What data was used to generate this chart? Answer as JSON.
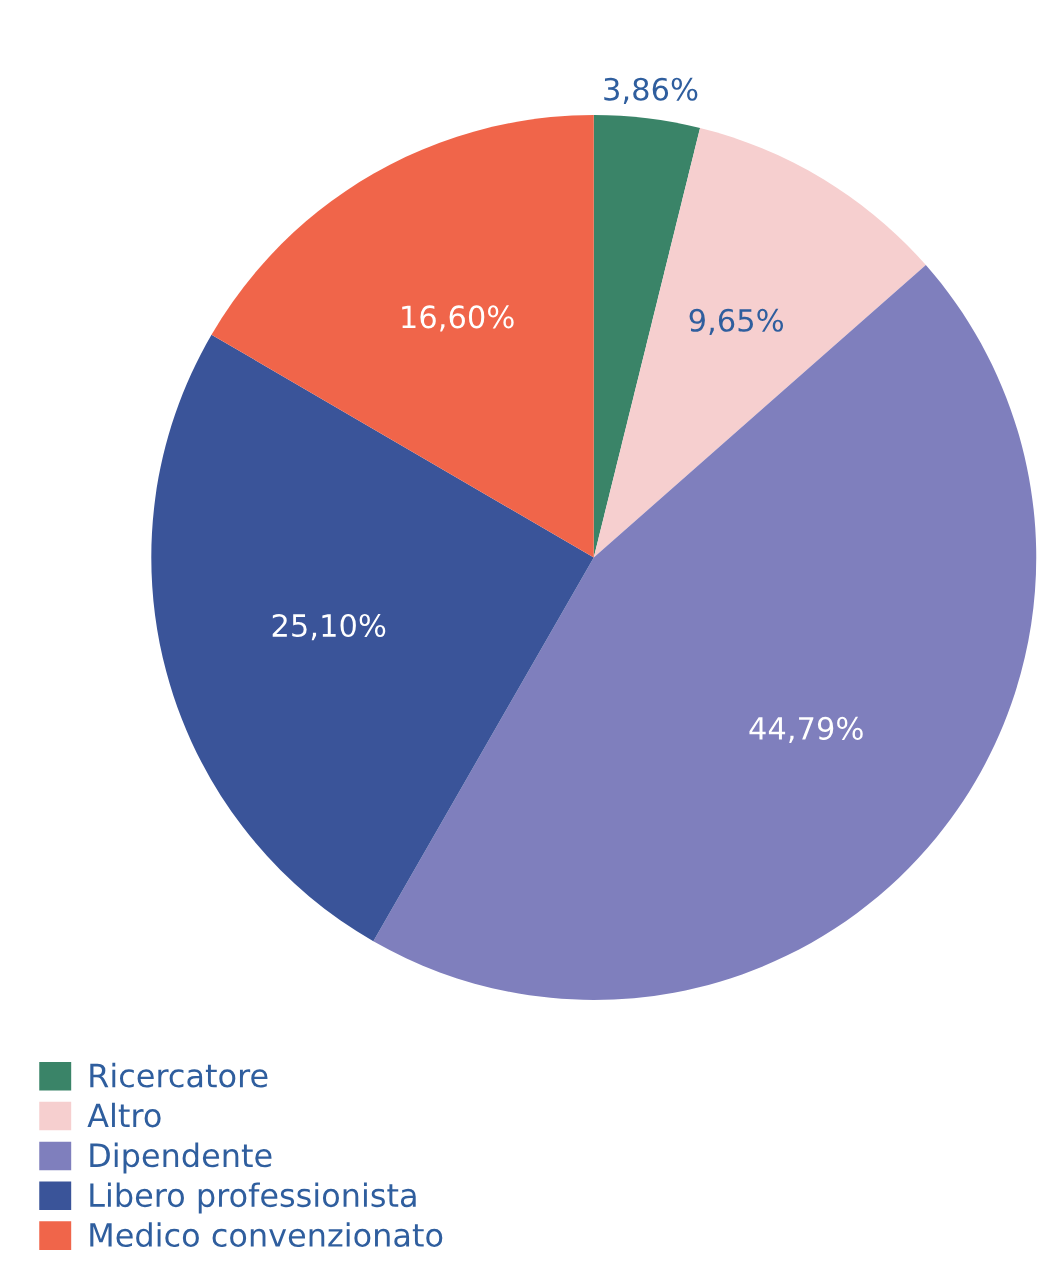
{
  "chart_data": {
    "type": "pie",
    "categories": [
      "Ricercatore",
      "Altro",
      "Dipendente",
      "Libero professionista",
      "Medico convenzionato"
    ],
    "values": [
      3.86,
      9.65,
      44.79,
      25.1,
      16.6
    ],
    "colors": [
      "#3a8468",
      "#f6cfcf",
      "#7f7fbd",
      "#3a5499",
      "#f0654a"
    ],
    "value_labels": [
      "3,86%",
      "9,65%",
      "44,79%",
      "25,10%",
      "16,60%"
    ],
    "legend": "bottom left"
  }
}
